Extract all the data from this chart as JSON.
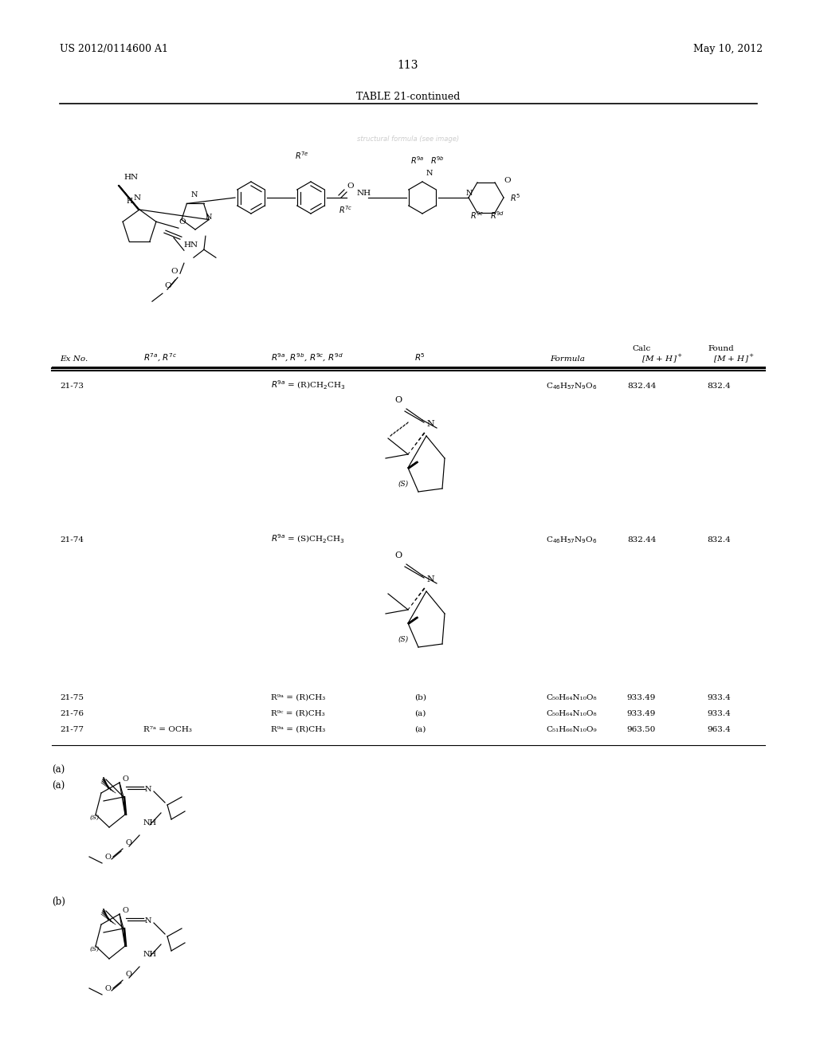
{
  "page_number": "113",
  "patent_number": "US 2012/0114600 A1",
  "patent_date": "May 10, 2012",
  "table_title": "TABLE 21-continued",
  "background_color": "#ffffff",
  "text_color": "#000000",
  "table_header": {
    "col1": "Ex No.",
    "col2": "R⁺, R‧ᶜ",
    "col3": "R⁹ᵃ, R⁹ᵇ, R⁹ᶜ, R⁹ᵈ",
    "col4": "R⁵",
    "col5": "Formula",
    "col6_top": "Calc",
    "col7_top": "Found",
    "col6": "[M + H]⁺",
    "col7": "[M + H]⁺"
  },
  "rows": [
    {
      "ex": "21-73",
      "r7": "",
      "r9": "R⁹ᵃ = (R)CH₂CH₃",
      "r5": "structure_a",
      "formula": "C₄₆H₅₇N₉O₆",
      "calc": "832.44",
      "found": "832.4"
    },
    {
      "ex": "21-74",
      "r7": "",
      "r9": "R⁹ᵃ = (S)CH₂CH₃",
      "r5": "structure_b",
      "formula": "C₄₆H₅₇N₉O₆",
      "calc": "832.44",
      "found": "832.4"
    },
    {
      "ex": "21-75",
      "r7": "",
      "r9": "R⁹ᵃ = (R)CH₃",
      "r5": "(b)",
      "formula": "C₅₀H₆₄N₁₀O₈",
      "calc": "933.49",
      "found": "933.4"
    },
    {
      "ex": "21-76",
      "r7": "",
      "r9": "R⁹ᶜ = (R)CH₃",
      "r5": "(a)",
      "formula": "C₅₀H₆₄N₁₀O₈",
      "calc": "933.49",
      "found": "933.4"
    },
    {
      "ex": "21-77",
      "r7": "R⁷ᵃ = OCH₃",
      "r9": "R⁹ᵃ = (R)CH₃",
      "r5": "(a)",
      "formula": "C₅₁H₆₆N₁₀O₉",
      "calc": "963.50",
      "found": "963.4"
    }
  ],
  "footnote_a_label": "(a)",
  "footnote_b_label": "(b)"
}
